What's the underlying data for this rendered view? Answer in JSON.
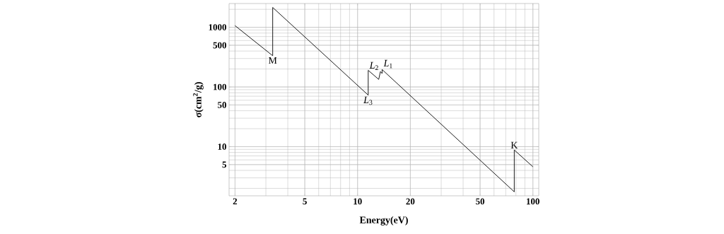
{
  "chart_data": {
    "type": "line",
    "xlabel": "Energy(eV)",
    "ylabel": "σ(cm$^{2}$/g)",
    "log": "xy",
    "grid": true,
    "x": [
      2,
      3.28,
      3.28,
      11.5,
      11.5,
      13.2,
      13.5,
      13.8,
      13.8,
      78.3,
      78.3,
      100
    ],
    "series": [
      {
        "color": "#000000",
        "values": [
          1065,
          334,
          2150,
          73,
          190,
          134,
          181,
          168,
          196,
          1.75,
          8.8,
          4.6
        ]
      }
    ],
    "xlim": [
      1.85,
      108
    ],
    "ylim": [
      1.5,
      2500
    ],
    "xticks": [
      2,
      5,
      10,
      20,
      50,
      100
    ],
    "yticks": [
      5,
      10,
      50,
      100,
      500,
      1000
    ],
    "annotations": [
      {
        "text": "M",
        "x": 3.28,
        "y": 334
      },
      {
        "text": "*L*$_{3}$",
        "x": 11.5,
        "y": 73
      },
      {
        "text": "*L*$_{2}$",
        "x": 13.5,
        "y": 181
      },
      {
        "text": "*L*$_{1}$",
        "x": 13.8,
        "y": 196
      },
      {
        "text": "K",
        "x": 78.3,
        "y": 8.8
      }
    ]
  }
}
